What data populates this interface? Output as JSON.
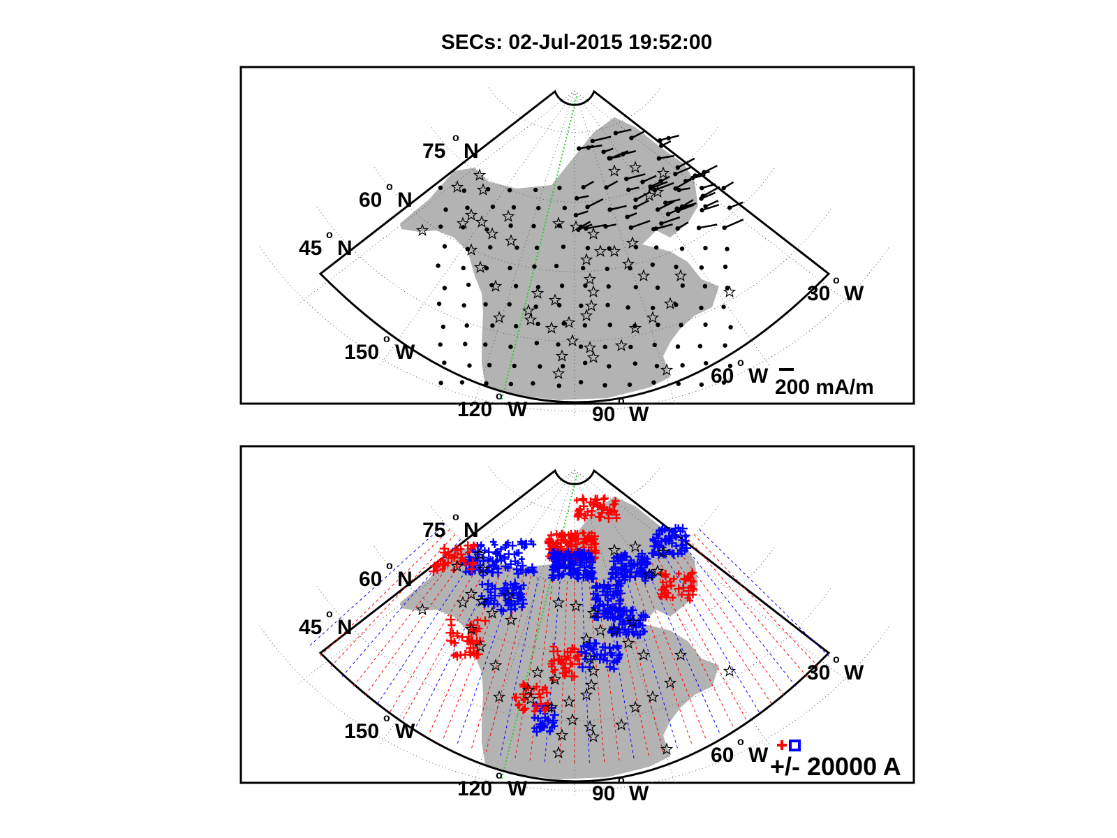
{
  "figure": {
    "title": "SECs: 02-Jul-2015 19:52:00"
  },
  "map_labels": {
    "lat_75": {
      "value": "75",
      "deg": "o",
      "hem": "N"
    },
    "lat_60": {
      "value": "60",
      "deg": "o",
      "hem": "N"
    },
    "lat_45": {
      "value": "45",
      "deg": "o",
      "hem": "N"
    },
    "lon_150": {
      "value": "150",
      "deg": "o",
      "hem": "W"
    },
    "lon_120": {
      "value": "120",
      "deg": "o",
      "hem": "W"
    },
    "lon_90": {
      "value": "90",
      "deg": "o",
      "hem": "W"
    },
    "lon_60": {
      "value": "60",
      "deg": "o",
      "hem": "W"
    },
    "lon_30": {
      "value": "30",
      "deg": "o",
      "hem": "W"
    }
  },
  "panels": [
    {
      "id": "top",
      "content": "equivalent current vectors",
      "scale_label": "200 mA/m"
    },
    {
      "id": "bottom",
      "content": "SEC amplitudes",
      "scale_label": "+/- 20000 A"
    }
  ],
  "colors": {
    "land": "#b3b3b3",
    "positive": "#ff0000",
    "negative": "#0000ff",
    "meridian": "#22cc22",
    "grid": "#555555",
    "frame": "#000000"
  },
  "icons": {
    "station": "star-outline-icon",
    "vector_origin": "dot-icon",
    "positive_marker": "plus-icon",
    "negative_marker": "square-icon"
  }
}
